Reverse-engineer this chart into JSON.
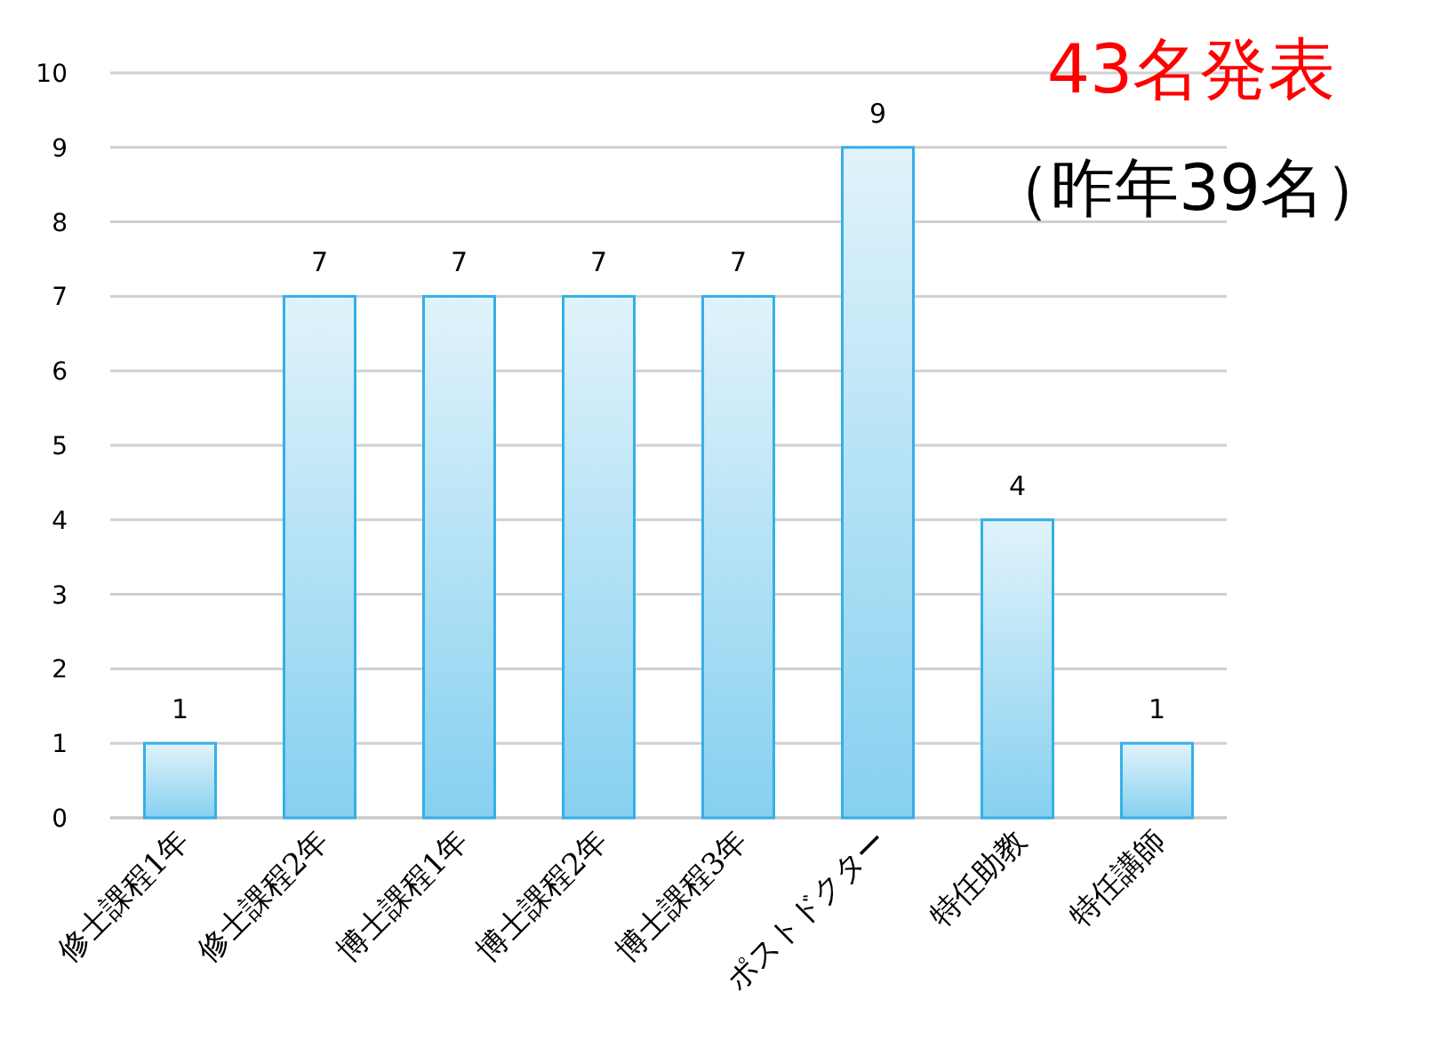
{
  "chart_data": {
    "type": "bar",
    "title": "43名発表",
    "subtitle": "（昨年39名）",
    "categories": [
      "修士課程1年",
      "修士課程2年",
      "博士課程1年",
      "博士課程2年",
      "博士課程3年",
      "ポストドクター",
      "特任助教",
      "特任講師"
    ],
    "values": [
      1,
      7,
      7,
      7,
      7,
      9,
      4,
      1
    ],
    "color": "#35b0e6",
    "ylim": [
      0,
      10
    ],
    "yticks": [
      0,
      1,
      2,
      3,
      4,
      5,
      6,
      7,
      8,
      9,
      10
    ],
    "grid": "y",
    "data_labels": true
  }
}
